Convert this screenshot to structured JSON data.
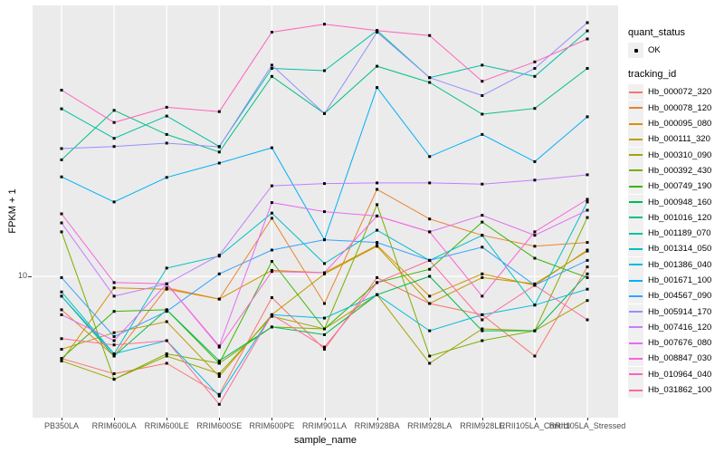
{
  "chart_data": {
    "type": "line",
    "title": "",
    "xlabel": "sample_name",
    "ylabel": "FPKM + 1",
    "y_scale": "log10",
    "y_major_ticks": [
      10
    ],
    "y_tick_display": "10",
    "y_range_approx": [
      3.3,
      93
    ],
    "grid": "white major gridlines on grey panel",
    "legend_position": "right",
    "panel_bg": "#EBEBEB",
    "grid_color": "#FFFFFF",
    "point_color": "#000000",
    "point_shape": "small-black-square",
    "legend": {
      "quant_status_title": "quant_status",
      "ok_label": "OK",
      "tracking_id_title": "tracking_id"
    },
    "categories": [
      "PB350LA",
      "RRIM600LA",
      "RRIM600LE",
      "RRIM600SE",
      "RRIM600PE",
      "RRIM901LA",
      "RRIM928BA",
      "RRIM928LA",
      "RRIM928LE",
      "RRII105LA_Control",
      "RRII105LA_Stressed"
    ],
    "series": [
      {
        "name": "Hb_000072_320",
        "color": "#F8766D",
        "values": [
          5.1,
          4.5,
          4.9,
          3.8,
          8.4,
          5.5,
          9.9,
          8.0,
          7.3,
          5.2,
          10.8
        ]
      },
      {
        "name": "Hb_000078_120",
        "color": "#EA8331",
        "values": [
          7.6,
          5.2,
          9.1,
          8.3,
          16.1,
          8.0,
          20.4,
          16.0,
          14.0,
          12.8,
          13.2
        ]
      },
      {
        "name": "Hb_000095_080",
        "color": "#D89000",
        "values": [
          5.0,
          9.1,
          9.0,
          8.3,
          10.5,
          10.3,
          12.9,
          8.5,
          10.2,
          9.3,
          12.4
        ]
      },
      {
        "name": "Hb_000111_320",
        "color": "#C09B00",
        "values": [
          5.5,
          6.3,
          6.9,
          4.4,
          7.3,
          10.2,
          12.8,
          8.0,
          9.9,
          9.4,
          12.3
        ]
      },
      {
        "name": "Hb_000310_090",
        "color": "#A3A500",
        "values": [
          5.0,
          4.3,
          5.2,
          4.5,
          7.2,
          6.5,
          8.6,
          4.9,
          6.5,
          6.4,
          8.2
        ]
      },
      {
        "name": "Hb_000392_430",
        "color": "#7CAE00",
        "values": [
          14.4,
          4.3,
          5.3,
          4.9,
          6.6,
          6.5,
          18.0,
          5.2,
          5.9,
          6.4,
          16.2
        ]
      },
      {
        "name": "Hb_000749_190",
        "color": "#39B600",
        "values": [
          5.1,
          7.5,
          7.6,
          4.9,
          11.3,
          6.5,
          9.5,
          10.6,
          15.6,
          11.6,
          9.9
        ]
      },
      {
        "name": "Hb_000948_160",
        "color": "#00BB4E",
        "values": [
          8.5,
          5.2,
          7.6,
          5.0,
          6.6,
          6.2,
          8.6,
          10.0,
          6.4,
          6.4,
          10.2
        ]
      },
      {
        "name": "Hb_001016_120",
        "color": "#00C087",
        "values": [
          26,
          39,
          32,
          27.7,
          51.5,
          38,
          56,
          49,
          37.8,
          39.6,
          55
        ]
      },
      {
        "name": "Hb_001189_070",
        "color": "#00C1A3",
        "values": [
          39.5,
          31,
          37.2,
          29,
          55,
          54,
          75,
          51,
          56.5,
          51.5,
          74.8
        ]
      },
      {
        "name": "Hb_001314_050",
        "color": "#00BFC4",
        "values": [
          8.8,
          5.3,
          10.7,
          11.8,
          16.8,
          11.1,
          14.6,
          11.4,
          14.0,
          7.9,
          18.4
        ]
      },
      {
        "name": "Hb_001386_040",
        "color": "#00BAE0",
        "values": [
          8.5,
          5.3,
          5.9,
          3.75,
          7.3,
          7.1,
          8.6,
          6.4,
          7.3,
          7.9,
          9.0
        ]
      },
      {
        "name": "Hb_001671_100",
        "color": "#00B0F6",
        "values": [
          22.6,
          18.4,
          22.5,
          25.3,
          28.7,
          13.5,
          47,
          26.7,
          32,
          25.6,
          37
        ]
      },
      {
        "name": "Hb_004567_090",
        "color": "#35A2FF",
        "values": [
          9.9,
          6.1,
          7.5,
          10.2,
          12.4,
          13.5,
          13.2,
          11.4,
          12.7,
          9.3,
          11.4
        ]
      },
      {
        "name": "Hb_005914_170",
        "color": "#9590FF",
        "values": [
          28.5,
          29,
          29.8,
          28.9,
          56.5,
          38,
          74,
          51,
          44,
          55,
          80
        ]
      },
      {
        "name": "Hb_007416_120",
        "color": "#C77CFF",
        "values": [
          15.5,
          8.5,
          9.4,
          11.9,
          21.0,
          21.4,
          21.5,
          21.5,
          21.3,
          22.0,
          23.0
        ]
      },
      {
        "name": "Hb_007676_080",
        "color": "#E76BF3",
        "values": [
          7.3,
          5.9,
          9.4,
          5.65,
          18.3,
          17.0,
          16.4,
          14.4,
          16.5,
          14.0,
          17.2
        ]
      },
      {
        "name": "Hb_008847_030",
        "color": "#FA62DB",
        "values": [
          16.7,
          9.5,
          9.4,
          5.6,
          10.4,
          10.3,
          16.4,
          14.4,
          8.5,
          14.4,
          18.8
        ]
      },
      {
        "name": "Hb_010964_040",
        "color": "#FF62BC",
        "values": [
          46,
          35.3,
          40,
          38.6,
          74,
          79,
          75,
          72,
          49.5,
          58,
          70
        ]
      },
      {
        "name": "Hb_031862_100",
        "color": "#FF6A98",
        "values": [
          6.0,
          5.7,
          5.9,
          3.5,
          7.3,
          5.6,
          9.5,
          11.4,
          7.0,
          9.3,
          7.0
        ]
      }
    ]
  }
}
